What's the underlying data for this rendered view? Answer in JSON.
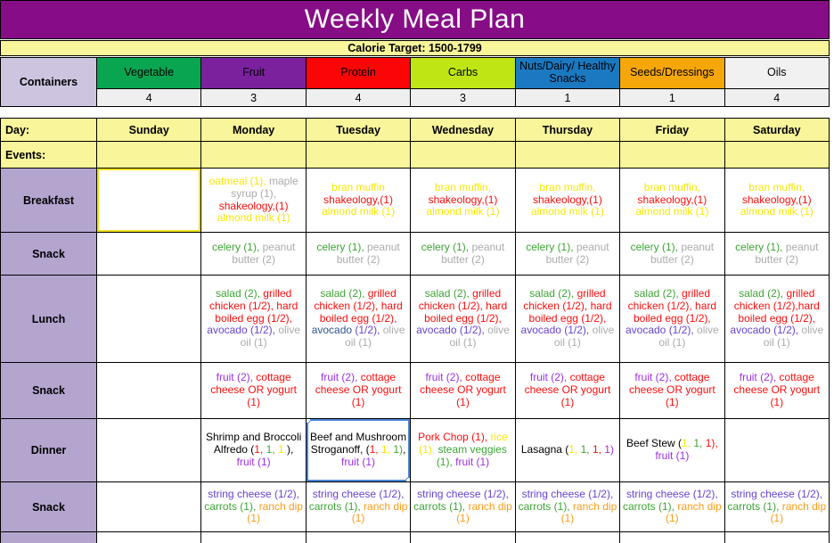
{
  "banner": {
    "title": "Weekly Meal Plan"
  },
  "calorie_row": {
    "text": "Calorie Target: 1500-1799"
  },
  "palette": {
    "red": "#FD0D0D",
    "green": "#3DA435",
    "yellow": "#F7E802",
    "gray": "#ABABAB",
    "purple": "#9C2FE3",
    "violet": "#6743D0",
    "navy": "#2D5590",
    "orange": "#FC9C17",
    "black": "#000000"
  },
  "colors": {
    "banner_bg": "#870D87",
    "row_yellow": "#F8F59A",
    "label_lavender": "#B4A5CF",
    "containers_lavender": "#CDC5E0",
    "selection_blue": "#4A86D8",
    "highlight_yellow": "#EFE11C"
  },
  "containers": {
    "label": "Containers",
    "columns": [
      {
        "name": "Vegetable",
        "count": "4",
        "bg": "#0AA551"
      },
      {
        "name": "Fruit",
        "count": "3",
        "bg": "#7B219E"
      },
      {
        "name": "Protein",
        "count": "4",
        "bg": "#FB0507"
      },
      {
        "name": "Carbs",
        "count": "3",
        "bg": "#BFE614"
      },
      {
        "name": "Nuts/Dairy/ Healthy Snacks",
        "count": "1",
        "bg": "#1B79C2"
      },
      {
        "name": "Seeds/Dressings",
        "count": "1",
        "bg": "#F5A70A"
      },
      {
        "name": "Oils",
        "count": "4",
        "bg": "#F1F1F1"
      }
    ]
  },
  "day_row": {
    "label": "Day:",
    "days": [
      "Sunday",
      "Monday",
      "Tuesday",
      "Wednesday",
      "Thursday",
      "Friday",
      "Saturday"
    ]
  },
  "events_row": {
    "label": "Events:"
  },
  "meal_rows": [
    {
      "label": "Breakfast",
      "cells": [
        [],
        [
          {
            "t": "oatmeal (1), ",
            "c": "yellow"
          },
          {
            "t": "maple syrup (1), ",
            "c": "gray"
          },
          {
            "t": "shakeology,(1) ",
            "c": "red"
          },
          {
            "t": "almond milk (1)",
            "c": "yellow"
          }
        ],
        [
          {
            "t": "bran muffin ",
            "c": "yellow"
          },
          {
            "t": "shakeology,(1) ",
            "c": "red"
          },
          {
            "t": "almond milk (1)",
            "c": "yellow"
          }
        ],
        [
          {
            "t": "bran muffin, ",
            "c": "yellow"
          },
          {
            "t": "shakeology,(1) ",
            "c": "red"
          },
          {
            "t": "almond milk (1)",
            "c": "yellow"
          }
        ],
        [
          {
            "t": "bran muffin, ",
            "c": "yellow"
          },
          {
            "t": "shakeology,(1) ",
            "c": "red"
          },
          {
            "t": "almond milk (1)",
            "c": "yellow"
          }
        ],
        [
          {
            "t": "bran muffin, ",
            "c": "yellow"
          },
          {
            "t": "shakeology,(1) ",
            "c": "red"
          },
          {
            "t": "almond milk (1)",
            "c": "yellow"
          }
        ],
        [
          {
            "t": "bran muffin, ",
            "c": "yellow"
          },
          {
            "t": "shakeology,(1) ",
            "c": "red"
          },
          {
            "t": "almond milk (1)",
            "c": "yellow"
          }
        ]
      ]
    },
    {
      "label": "Snack",
      "cells": [
        [],
        [
          {
            "t": "celery (1), ",
            "c": "green"
          },
          {
            "t": "peanut butter (2)",
            "c": "gray"
          }
        ],
        [
          {
            "t": "celery (1), ",
            "c": "green"
          },
          {
            "t": "peanut butter (2)",
            "c": "gray"
          }
        ],
        [
          {
            "t": "celery (1), ",
            "c": "green"
          },
          {
            "t": "peanut butter (2)",
            "c": "gray"
          }
        ],
        [
          {
            "t": "celery (1), ",
            "c": "green"
          },
          {
            "t": "peanut butter (2)",
            "c": "gray"
          }
        ],
        [
          {
            "t": "celery (1), ",
            "c": "green"
          },
          {
            "t": "peanut butter (2)",
            "c": "gray"
          }
        ],
        [
          {
            "t": "celery (1), ",
            "c": "green"
          },
          {
            "t": "peanut butter (2)",
            "c": "gray"
          }
        ]
      ]
    },
    {
      "label": "Lunch",
      "cells": [
        [],
        [
          {
            "t": "salad (2), ",
            "c": "green"
          },
          {
            "t": "grilled chicken (1/2), hard boiled egg (1/2), ",
            "c": "red"
          },
          {
            "t": "avocado (1/2), ",
            "c": "violet"
          },
          {
            "t": "olive oil (1)",
            "c": "gray"
          }
        ],
        [
          {
            "t": "salad (2), ",
            "c": "green"
          },
          {
            "t": "grilled chicken (1/2), hard boiled egg (1/2), ",
            "c": "red"
          },
          {
            "t": "avocado ",
            "c": "navy"
          },
          {
            "t": "(1/2), ",
            "c": "violet"
          },
          {
            "t": "olive oil (1)",
            "c": "gray"
          }
        ],
        [
          {
            "t": "salad (2), ",
            "c": "green"
          },
          {
            "t": "grilled chicken (1/2), hard boiled egg (1/2), ",
            "c": "red"
          },
          {
            "t": "avocado (1/2), ",
            "c": "violet"
          },
          {
            "t": "olive oil (1)",
            "c": "gray"
          }
        ],
        [
          {
            "t": "salad (2), ",
            "c": "green"
          },
          {
            "t": "grilled chicken (1/2), hard boiled egg (1/2), ",
            "c": "red"
          },
          {
            "t": "avocado (1/2), ",
            "c": "violet"
          },
          {
            "t": "olive oil (1)",
            "c": "gray"
          }
        ],
        [
          {
            "t": "salad (2), ",
            "c": "green"
          },
          {
            "t": "grilled chicken (1/2), hard boiled egg (1/2), ",
            "c": "red"
          },
          {
            "t": "avocado (1/2), ",
            "c": "violet"
          },
          {
            "t": "olive oil (1)",
            "c": "gray"
          }
        ],
        [
          {
            "t": "salad (2), ",
            "c": "green"
          },
          {
            "t": "grilled chicken (1/2),hard boiled egg (1/2), ",
            "c": "red"
          },
          {
            "t": "avocado (1/2), ",
            "c": "violet"
          },
          {
            "t": "olive oil (1)",
            "c": "gray"
          }
        ]
      ]
    },
    {
      "label": "Snack",
      "cells": [
        [],
        [
          {
            "t": "fruit (2), ",
            "c": "purple"
          },
          {
            "t": "cottage cheese OR yogurt (1)",
            "c": "red"
          }
        ],
        [
          {
            "t": "fruit (2), ",
            "c": "purple"
          },
          {
            "t": "cottage cheese OR yogurt (1)",
            "c": "red"
          }
        ],
        [
          {
            "t": "fruit (2), ",
            "c": "purple"
          },
          {
            "t": "cottage cheese OR yogurt (1)",
            "c": "red"
          }
        ],
        [
          {
            "t": "fruit (2), ",
            "c": "purple"
          },
          {
            "t": "cottage cheese OR yogurt (1)",
            "c": "red"
          }
        ],
        [
          {
            "t": "fruit (2), ",
            "c": "purple"
          },
          {
            "t": "cottage cheese OR yogurt (1)",
            "c": "red"
          }
        ],
        [
          {
            "t": "fruit (2), ",
            "c": "purple"
          },
          {
            "t": "cottage cheese OR yogurt (1)",
            "c": "red"
          }
        ]
      ]
    },
    {
      "label": "Dinner",
      "cells": [
        [],
        [
          {
            "t": "Shrimp and Broccoli Alfredo (",
            "c": "black"
          },
          {
            "t": "1, ",
            "c": "red"
          },
          {
            "t": "1, ",
            "c": "green"
          },
          {
            "t": "1,",
            "c": "yellow"
          },
          {
            "t": "), ",
            "c": "black"
          },
          {
            "t": "fruit (1)",
            "c": "purple"
          }
        ],
        [
          {
            "t": "Beef and Mushroom Stroganoff, (",
            "c": "black"
          },
          {
            "t": "1, ",
            "c": "red"
          },
          {
            "t": "1, ",
            "c": "yellow"
          },
          {
            "t": "1)",
            "c": "green"
          },
          {
            "t": ", ",
            "c": "black"
          },
          {
            "t": "fruit (1)",
            "c": "purple"
          }
        ],
        [
          {
            "t": "Pork Chop (1), ",
            "c": "red"
          },
          {
            "t": "rice (1), ",
            "c": "yellow"
          },
          {
            "t": "steam veggies (1), ",
            "c": "green"
          },
          {
            "t": "fruit (1)",
            "c": "purple"
          }
        ],
        [
          {
            "t": "Lasagna (",
            "c": "black"
          },
          {
            "t": "1, ",
            "c": "yellow"
          },
          {
            "t": "1, ",
            "c": "green"
          },
          {
            "t": "1, ",
            "c": "red"
          },
          {
            "t": "1)",
            "c": "purple"
          }
        ],
        [
          {
            "t": "Beef Stew (",
            "c": "black"
          },
          {
            "t": "1, ",
            "c": "yellow"
          },
          {
            "t": "1, ",
            "c": "green"
          },
          {
            "t": "1), ",
            "c": "red"
          },
          {
            "t": "fruit (1)",
            "c": "purple"
          }
        ],
        []
      ]
    },
    {
      "label": "Snack",
      "cells": [
        [],
        [
          {
            "t": "string cheese (1/2), ",
            "c": "violet"
          },
          {
            "t": "carrots (1), ",
            "c": "green"
          },
          {
            "t": "ranch dip (1)",
            "c": "orange"
          }
        ],
        [
          {
            "t": "string cheese (1/2), ",
            "c": "violet"
          },
          {
            "t": "carrots (1), ",
            "c": "green"
          },
          {
            "t": "ranch dip (1)",
            "c": "orange"
          }
        ],
        [
          {
            "t": "string cheese (1/2), ",
            "c": "violet"
          },
          {
            "t": "carrots (1), ",
            "c": "green"
          },
          {
            "t": "ranch dip (1)",
            "c": "orange"
          }
        ],
        [
          {
            "t": "string cheese (1/2), ",
            "c": "violet"
          },
          {
            "t": "carrots (1), ",
            "c": "green"
          },
          {
            "t": "ranch dip (1)",
            "c": "orange"
          }
        ],
        [
          {
            "t": "string cheese (1/2), ",
            "c": "violet"
          },
          {
            "t": "carrots (1), ",
            "c": "green"
          },
          {
            "t": "ranch dip (1)",
            "c": "orange"
          }
        ],
        [
          {
            "t": "string cheese (1/2), ",
            "c": "violet"
          },
          {
            "t": "carrots (1), ",
            "c": "green"
          },
          {
            "t": "ranch dip (1)",
            "c": "orange"
          }
        ]
      ]
    }
  ],
  "selection": {
    "row_index": 4,
    "cell_index": 2
  },
  "yellow_highlight": {
    "row_index": 0,
    "cell_index": 0
  }
}
